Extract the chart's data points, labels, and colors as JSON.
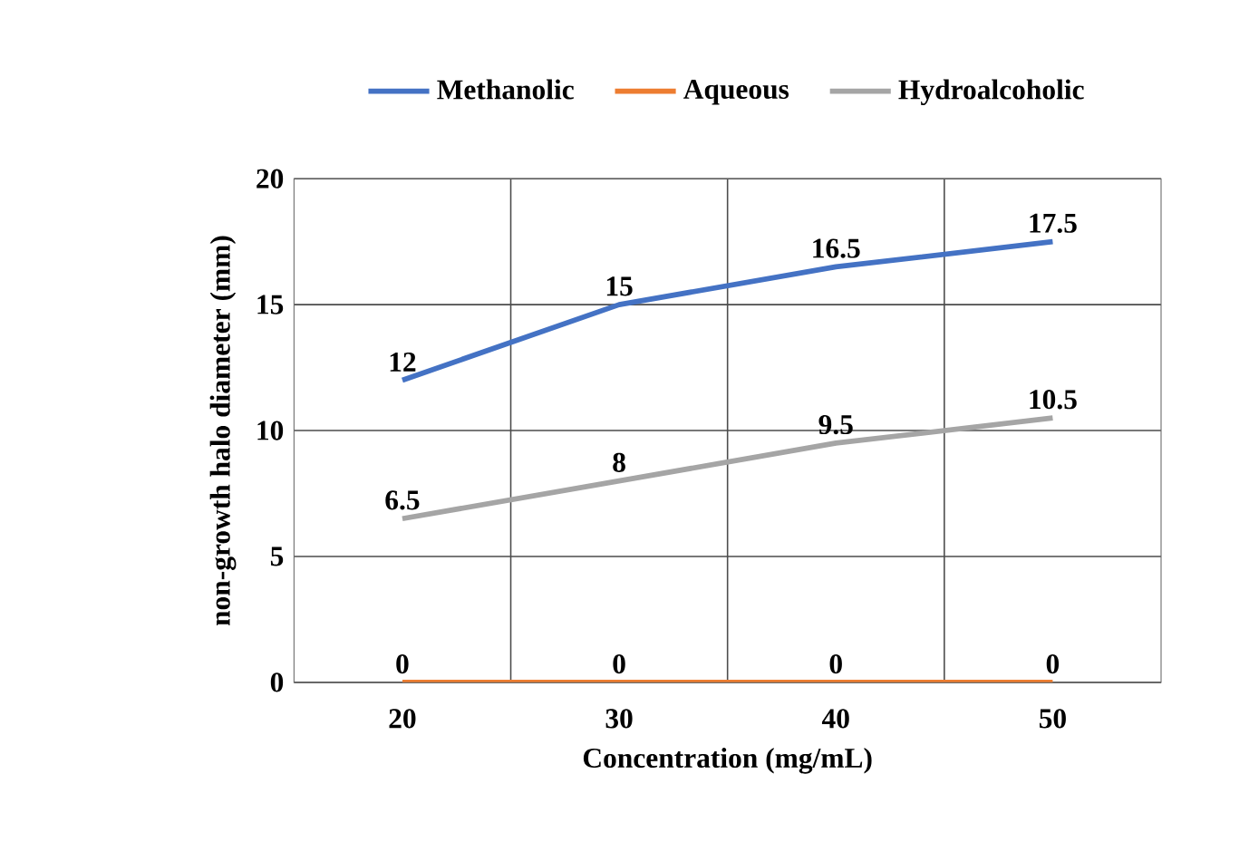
{
  "chart_data": {
    "type": "line",
    "xlabel": "Concentration (mg/mL)",
    "ylabel": "non-growth halo diameter (mm)",
    "categories": [
      "20",
      "30",
      "40",
      "50"
    ],
    "series": [
      {
        "name": "Methanolic",
        "color": "#4472c4",
        "values": [
          12,
          15,
          16.5,
          17.5
        ]
      },
      {
        "name": "Aqueous",
        "color": "#ed7d31",
        "values": [
          0,
          0,
          0,
          0
        ]
      },
      {
        "name": "Hydroalcoholic",
        "color": "#a5a5a5",
        "values": [
          6.5,
          8,
          9.5,
          10.5
        ]
      }
    ],
    "ylim": [
      0,
      20
    ],
    "yticks": [
      0,
      5,
      10,
      15,
      20
    ],
    "grid": true,
    "legend": "top",
    "data_labels": true,
    "marker": "none",
    "line_style": "solid"
  }
}
